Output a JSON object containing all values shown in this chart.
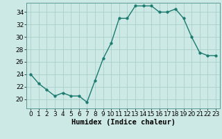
{
  "x": [
    0,
    1,
    2,
    3,
    4,
    5,
    6,
    7,
    8,
    9,
    10,
    11,
    12,
    13,
    14,
    15,
    16,
    17,
    18,
    19,
    20,
    21,
    22,
    23
  ],
  "y": [
    24,
    22.5,
    21.5,
    20.5,
    21,
    20.5,
    20.5,
    19.5,
    23,
    26.5,
    29,
    33,
    33,
    35,
    35,
    35,
    34,
    34,
    34.5,
    33,
    30,
    27.5,
    27,
    27
  ],
  "line_color": "#1a7a6e",
  "marker_color": "#1a7a6e",
  "bg_color": "#cce9e5",
  "grid_color": "#aacfcb",
  "xlabel": "Humidex (Indice chaleur)",
  "xlim": [
    -0.5,
    23.5
  ],
  "ylim": [
    18.5,
    35.5
  ],
  "yticks": [
    20,
    22,
    24,
    26,
    28,
    30,
    32,
    34
  ],
  "xticks": [
    0,
    1,
    2,
    3,
    4,
    5,
    6,
    7,
    8,
    9,
    10,
    11,
    12,
    13,
    14,
    15,
    16,
    17,
    18,
    19,
    20,
    21,
    22,
    23
  ],
  "xlabel_fontsize": 7.5,
  "tick_fontsize": 6.5,
  "line_width": 1.0,
  "marker_size": 2.5
}
